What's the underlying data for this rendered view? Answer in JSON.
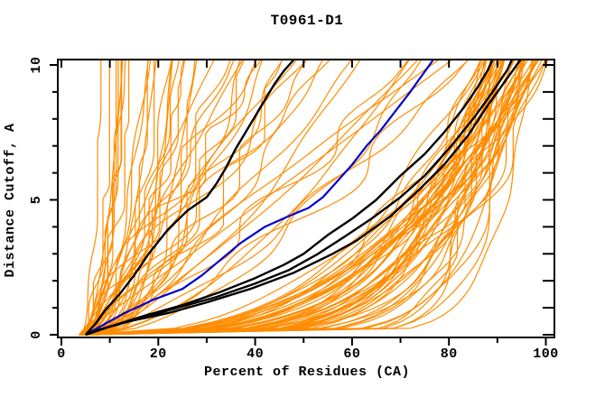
{
  "chart_data": {
    "type": "line",
    "title": "T0961-D1",
    "xlabel": "Percent of Residues (CA)",
    "ylabel": "Distance Cutoff, A",
    "xlim": [
      0,
      100
    ],
    "ylim": [
      0,
      10
    ],
    "grid": false,
    "legend": "none",
    "frame": "full-box",
    "x_ticks_major": [
      0,
      20,
      40,
      60,
      80,
      100
    ],
    "x_tick_labels": [
      "0",
      "20",
      "40",
      "60",
      "80",
      "100"
    ],
    "x_minor_step": 10,
    "y_ticks_major": [
      0,
      5,
      10
    ],
    "y_tick_labels": [
      "0",
      "5",
      "10"
    ],
    "y_minor_step": 1,
    "colors": {
      "ensemble": "#ff8c00",
      "highlight": "#0000cd",
      "reference": "#000000",
      "frame": "#000000",
      "text": "#000000",
      "background": "#ffffff"
    },
    "series": [
      {
        "name": "blue-model",
        "color": "#0000cd",
        "width": 2.2,
        "points_percent_cutoff": [
          [
            5,
            0
          ],
          [
            8,
            0.3
          ],
          [
            13,
            0.8
          ],
          [
            19,
            1.3
          ],
          [
            25,
            1.7
          ],
          [
            29,
            2.2
          ],
          [
            33,
            2.8
          ],
          [
            37,
            3.4
          ],
          [
            42,
            4.0
          ],
          [
            47,
            4.4
          ],
          [
            51,
            4.7
          ],
          [
            54,
            5.1
          ],
          [
            57,
            5.7
          ],
          [
            60,
            6.3
          ],
          [
            63,
            7.0
          ],
          [
            66,
            7.6
          ],
          [
            69,
            8.3
          ],
          [
            72,
            9.0
          ],
          [
            74,
            9.5
          ],
          [
            76,
            10
          ]
        ]
      },
      {
        "name": "black-model-1",
        "color": "#000000",
        "width": 2.4,
        "points_percent_cutoff": [
          [
            5,
            0
          ],
          [
            7,
            0.4
          ],
          [
            9,
            0.9
          ],
          [
            12,
            1.5
          ],
          [
            15,
            2.2
          ],
          [
            18,
            3.0
          ],
          [
            22,
            3.9
          ],
          [
            26,
            4.6
          ],
          [
            30,
            5.1
          ],
          [
            32,
            5.6
          ],
          [
            34,
            6.2
          ],
          [
            36,
            6.9
          ],
          [
            38,
            7.5
          ],
          [
            41,
            8.4
          ],
          [
            44,
            9.3
          ],
          [
            46,
            9.8
          ],
          [
            47,
            10
          ]
        ]
      },
      {
        "name": "black-model-2",
        "color": "#000000",
        "width": 2.4,
        "points_percent_cutoff": [
          [
            5,
            0
          ],
          [
            10,
            0.3
          ],
          [
            17,
            0.7
          ],
          [
            25,
            1.1
          ],
          [
            33,
            1.6
          ],
          [
            40,
            2.1
          ],
          [
            46,
            2.6
          ],
          [
            50,
            3.0
          ],
          [
            55,
            3.7
          ],
          [
            60,
            4.3
          ],
          [
            65,
            5.0
          ],
          [
            70,
            5.9
          ],
          [
            75,
            6.7
          ],
          [
            79,
            7.5
          ],
          [
            83,
            8.4
          ],
          [
            86,
            9.2
          ],
          [
            88,
            9.8
          ],
          [
            88.5,
            10
          ]
        ]
      },
      {
        "name": "black-model-3",
        "color": "#000000",
        "width": 2.4,
        "points_percent_cutoff": [
          [
            5,
            0
          ],
          [
            9,
            0.25
          ],
          [
            16,
            0.6
          ],
          [
            24,
            1.0
          ],
          [
            32,
            1.4
          ],
          [
            40,
            1.9
          ],
          [
            47,
            2.4
          ],
          [
            53,
            3.0
          ],
          [
            59,
            3.7
          ],
          [
            64,
            4.3
          ],
          [
            70,
            5.1
          ],
          [
            75,
            5.9
          ],
          [
            80,
            6.9
          ],
          [
            85,
            8.0
          ],
          [
            89,
            9.0
          ],
          [
            92,
            9.8
          ],
          [
            92.5,
            10
          ]
        ]
      },
      {
        "name": "black-model-4",
        "color": "#000000",
        "width": 2.4,
        "points_percent_cutoff": [
          [
            5,
            0
          ],
          [
            8,
            0.2
          ],
          [
            14,
            0.5
          ],
          [
            22,
            0.8
          ],
          [
            30,
            1.2
          ],
          [
            39,
            1.7
          ],
          [
            48,
            2.3
          ],
          [
            56,
            3.0
          ],
          [
            61,
            3.5
          ],
          [
            68,
            4.4
          ],
          [
            74,
            5.4
          ],
          [
            79,
            6.3
          ],
          [
            84,
            7.4
          ],
          [
            88,
            8.5
          ],
          [
            92,
            9.5
          ],
          [
            94,
            10
          ]
        ]
      }
    ],
    "ensemble": {
      "name": "orange-models",
      "color": "#ff8c00",
      "width": 1.2,
      "seed": 961,
      "start_percent_range": [
        3.5,
        7.5
      ],
      "groups": [
        {
          "count": 22,
          "top_percent_range": [
            8,
            28
          ],
          "shape_exp_range": [
            0.22,
            0.6
          ],
          "wiggle_max": 2.5
        },
        {
          "count": 26,
          "top_percent_range": [
            30,
            84
          ],
          "shape_exp_range": [
            0.5,
            1.15
          ],
          "wiggle_max": 5
        },
        {
          "count": 56,
          "top_percent_range": [
            86,
            100
          ],
          "shape_exp_range": [
            0.07,
            0.42
          ],
          "wiggle_max": 3
        }
      ]
    }
  }
}
